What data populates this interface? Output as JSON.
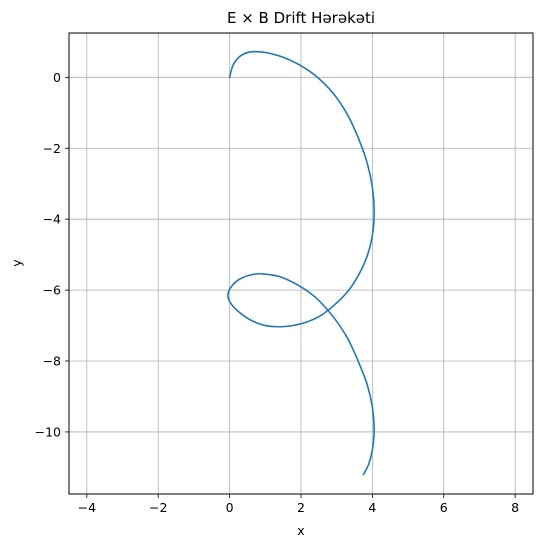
{
  "chart_data": {
    "type": "line",
    "title": "E × B Drift Hərəkəti",
    "xlabel": "x",
    "ylabel": "y",
    "xlim": [
      -4.5,
      8.5
    ],
    "ylim": [
      -11.75,
      1.25
    ],
    "xticks": [
      -4,
      -2,
      0,
      2,
      4,
      6,
      8
    ],
    "yticks": [
      0,
      -2,
      -4,
      -6,
      -8,
      -10
    ],
    "xtick_labels": [
      "−4",
      "−2",
      "0",
      "2",
      "4",
      "6",
      "8"
    ],
    "ytick_labels": [
      "0",
      "−2",
      "−4",
      "−6",
      "−8",
      "−10"
    ],
    "grid": true,
    "legend": "none",
    "series": [
      {
        "color": "#1f77b4",
        "x": [
          0,
          0.1,
          0.3,
          0.6,
          1.0,
          1.4,
          1.9,
          2.4,
          2.9,
          3.3,
          3.6,
          3.85,
          4.0,
          4.05,
          4.0,
          3.85,
          3.6,
          3.3,
          2.9,
          2.5,
          2.0,
          1.5,
          1.0,
          0.6,
          0.3,
          0.05,
          -0.05,
          0.05,
          0.3,
          0.7,
          1.0,
          1.4,
          1.9,
          2.4,
          2.9,
          3.3,
          3.6,
          3.85,
          4.0,
          4.05,
          4.0,
          3.9,
          3.75
        ],
        "y": [
          0,
          0.35,
          0.6,
          0.72,
          0.7,
          0.6,
          0.38,
          0.05,
          -0.45,
          -1.05,
          -1.7,
          -2.4,
          -3.1,
          -3.8,
          -4.45,
          -5.05,
          -5.6,
          -6.05,
          -6.45,
          -6.75,
          -6.95,
          -7.03,
          -7.0,
          -6.85,
          -6.65,
          -6.4,
          -6.15,
          -5.9,
          -5.68,
          -5.55,
          -5.55,
          -5.62,
          -5.85,
          -6.2,
          -6.75,
          -7.35,
          -8.0,
          -8.65,
          -9.3,
          -9.95,
          -10.5,
          -10.9,
          -11.2
        ]
      }
    ]
  }
}
